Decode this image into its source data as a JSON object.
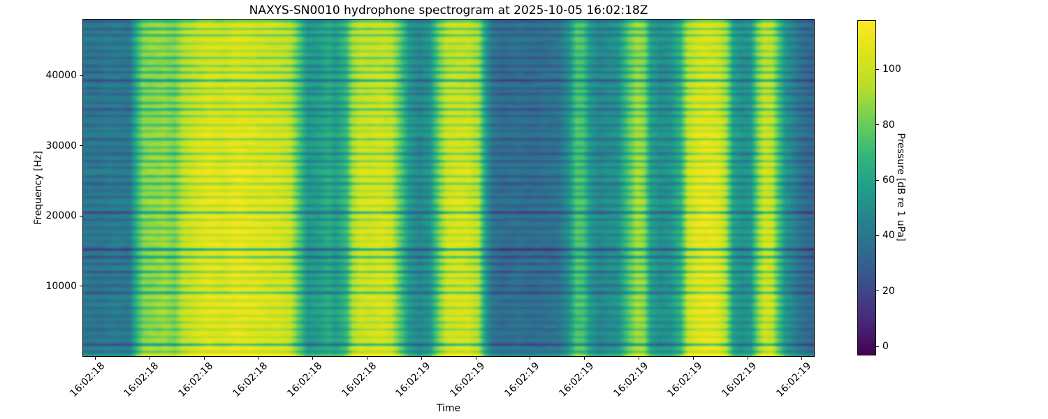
{
  "chart_data": {
    "type": "heatmap",
    "title": "NAXYS-SN0010 hydrophone spectrogram at 2025-10-05 16:02:18Z",
    "xlabel": "Time",
    "ylabel": "Frequency [Hz]",
    "colorbar_label": "Pressure [dB re 1 uPa]",
    "x_tick_labels": [
      "16:02:18",
      "16:02:18",
      "16:02:18",
      "16:02:18",
      "16:02:18",
      "16:02:18",
      "16:02:19",
      "16:02:19",
      "16:02:19",
      "16:02:19",
      "16:02:19",
      "16:02:19",
      "16:02:19",
      "16:02:19"
    ],
    "y_ticks": [
      10000,
      20000,
      30000,
      40000
    ],
    "ylim": [
      0,
      48000
    ],
    "colorbar_ticks": [
      0,
      20,
      40,
      60,
      80,
      100
    ],
    "value_range": [
      -3,
      117.5
    ],
    "grid": false,
    "legend": "none",
    "colormap": "viridis",
    "colormap_stops": [
      [
        0.0,
        "#440154"
      ],
      [
        0.1,
        "#482878"
      ],
      [
        0.2,
        "#3e4a89"
      ],
      [
        0.3,
        "#31688e"
      ],
      [
        0.4,
        "#26828e"
      ],
      [
        0.5,
        "#1f9e89"
      ],
      [
        0.6,
        "#35b779"
      ],
      [
        0.7,
        "#6ece58"
      ],
      [
        0.8,
        "#b5de2b"
      ],
      [
        0.9,
        "#dce319"
      ],
      [
        1.0,
        "#fde725"
      ]
    ],
    "time_level_profile_db": [
      [
        0.0,
        44
      ],
      [
        0.02,
        42
      ],
      [
        0.039,
        45
      ],
      [
        0.063,
        43
      ],
      [
        0.073,
        70
      ],
      [
        0.082,
        88
      ],
      [
        0.111,
        92
      ],
      [
        0.125,
        86
      ],
      [
        0.137,
        100
      ],
      [
        0.154,
        106
      ],
      [
        0.173,
        110
      ],
      [
        0.192,
        108
      ],
      [
        0.211,
        112
      ],
      [
        0.23,
        110
      ],
      [
        0.249,
        108
      ],
      [
        0.269,
        106
      ],
      [
        0.283,
        102
      ],
      [
        0.295,
        80
      ],
      [
        0.307,
        58
      ],
      [
        0.321,
        60
      ],
      [
        0.336,
        66
      ],
      [
        0.345,
        60
      ],
      [
        0.36,
        72
      ],
      [
        0.369,
        96
      ],
      [
        0.379,
        104
      ],
      [
        0.393,
        104
      ],
      [
        0.407,
        106
      ],
      [
        0.422,
        102
      ],
      [
        0.433,
        82
      ],
      [
        0.446,
        58
      ],
      [
        0.46,
        50
      ],
      [
        0.474,
        56
      ],
      [
        0.487,
        86
      ],
      [
        0.498,
        104
      ],
      [
        0.512,
        106
      ],
      [
        0.527,
        105
      ],
      [
        0.541,
        96
      ],
      [
        0.551,
        60
      ],
      [
        0.56,
        42
      ],
      [
        0.575,
        38
      ],
      [
        0.594,
        40
      ],
      [
        0.613,
        38
      ],
      [
        0.632,
        40
      ],
      [
        0.651,
        42
      ],
      [
        0.665,
        55
      ],
      [
        0.675,
        78
      ],
      [
        0.685,
        76
      ],
      [
        0.694,
        58
      ],
      [
        0.706,
        50
      ],
      [
        0.718,
        53
      ],
      [
        0.732,
        55
      ],
      [
        0.747,
        80
      ],
      [
        0.758,
        94
      ],
      [
        0.768,
        90
      ],
      [
        0.777,
        62
      ],
      [
        0.79,
        54
      ],
      [
        0.804,
        56
      ],
      [
        0.818,
        70
      ],
      [
        0.828,
        102
      ],
      [
        0.842,
        110
      ],
      [
        0.857,
        112
      ],
      [
        0.871,
        108
      ],
      [
        0.88,
        96
      ],
      [
        0.89,
        62
      ],
      [
        0.902,
        55
      ],
      [
        0.914,
        58
      ],
      [
        0.924,
        88
      ],
      [
        0.933,
        104
      ],
      [
        0.943,
        102
      ],
      [
        0.952,
        78
      ],
      [
        0.962,
        56
      ],
      [
        0.971,
        50
      ],
      [
        0.981,
        42
      ],
      [
        0.99,
        38
      ],
      [
        1.0,
        36
      ]
    ],
    "render": {
      "seed": 11,
      "striation_period_hz": 1050,
      "striation_depth_db": 18,
      "strong_line_prob": 0.2,
      "strong_line_factor": 1.9,
      "row_noise_db": 2.2,
      "noise_db": 3.2,
      "low_freq_boost_db": 13,
      "bright_mid_boost_db": 5,
      "bright_mid_center_hz": 22000,
      "bright_mid_sigma_hz": 15000,
      "bright_high_tilt_db": -5
    }
  }
}
